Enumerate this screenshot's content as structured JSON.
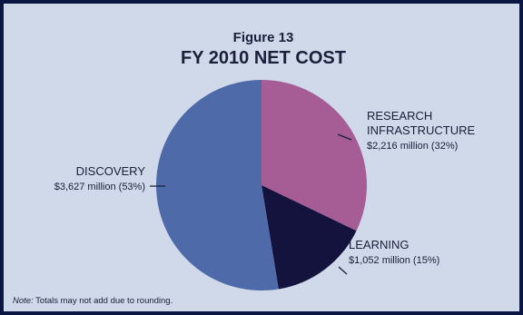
{
  "figure_label": "Figure 13",
  "colors": {
    "background": "#cfd9e9",
    "frame": "#0b1742",
    "text": "#1a1f3a"
  },
  "chart_data": {
    "type": "pie",
    "title": "FY 2010 NET COST",
    "unit": "million",
    "slices": [
      {
        "label": "RESEARCH INFRASTRUCTURE",
        "label_lines": [
          "RESEARCH",
          "INFRASTRUCTURE"
        ],
        "value": 2216,
        "value_text": "$2,216 million (32%)",
        "percent": 32,
        "color": "#a65c95"
      },
      {
        "label": "LEARNING",
        "label_lines": [
          "LEARNING"
        ],
        "value": 1052,
        "value_text": "$1,052 million (15%)",
        "percent": 15,
        "color": "#14133e"
      },
      {
        "label": "DISCOVERY",
        "label_lines": [
          "DISCOVERY"
        ],
        "value": 3627,
        "value_text": "$3,627 million (53%)",
        "percent": 53,
        "color": "#4e6aa9"
      }
    ],
    "start_angle": "12 o'clock",
    "direction": "clockwise",
    "note_prefix": "Note:",
    "note_text": " Totals may not add due to rounding."
  }
}
